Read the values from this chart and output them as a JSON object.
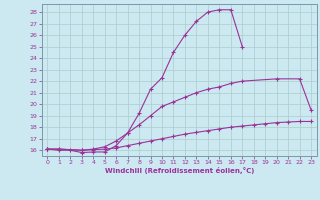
{
  "xlabel": "Windchill (Refroidissement éolien,°C)",
  "bg_color": "#cce8f0",
  "grid_color": "#aacccc",
  "line_color": "#993399",
  "xlim": [
    -0.5,
    23.5
  ],
  "ylim": [
    15.5,
    28.7
  ],
  "yticks": [
    16,
    17,
    18,
    19,
    20,
    21,
    22,
    23,
    24,
    25,
    26,
    27,
    28
  ],
  "xticks": [
    0,
    1,
    2,
    3,
    4,
    5,
    6,
    7,
    8,
    9,
    10,
    11,
    12,
    13,
    14,
    15,
    16,
    17,
    18,
    19,
    20,
    21,
    22,
    23
  ],
  "curve1_x": [
    0,
    1,
    2,
    3,
    4,
    5,
    6,
    7,
    8,
    9,
    10,
    11,
    12,
    13,
    14,
    15,
    16,
    17
  ],
  "curve1_y": [
    16.1,
    16.0,
    16.0,
    15.8,
    15.85,
    15.85,
    16.4,
    17.5,
    19.2,
    21.3,
    22.3,
    24.5,
    26.0,
    27.2,
    28.0,
    28.2,
    28.2,
    25.0
  ],
  "curve2_x": [
    0,
    1,
    3,
    4,
    5,
    6,
    7,
    8,
    9,
    10,
    11,
    12,
    13,
    14,
    15,
    16,
    17,
    20,
    22,
    23
  ],
  "curve2_y": [
    16.1,
    16.1,
    16.0,
    16.1,
    16.3,
    16.8,
    17.5,
    18.2,
    19.0,
    19.8,
    20.2,
    20.6,
    21.0,
    21.3,
    21.5,
    21.8,
    22.0,
    22.2,
    22.2,
    19.5
  ],
  "curve3_x": [
    0,
    1,
    3,
    4,
    5,
    6,
    7,
    8,
    9,
    10,
    11,
    12,
    13,
    14,
    15,
    16,
    17,
    18,
    19,
    20,
    21,
    22,
    23
  ],
  "curve3_y": [
    16.1,
    16.1,
    16.0,
    16.05,
    16.1,
    16.2,
    16.4,
    16.6,
    16.8,
    17.0,
    17.2,
    17.4,
    17.55,
    17.7,
    17.85,
    18.0,
    18.1,
    18.2,
    18.3,
    18.4,
    18.45,
    18.5,
    18.5
  ]
}
